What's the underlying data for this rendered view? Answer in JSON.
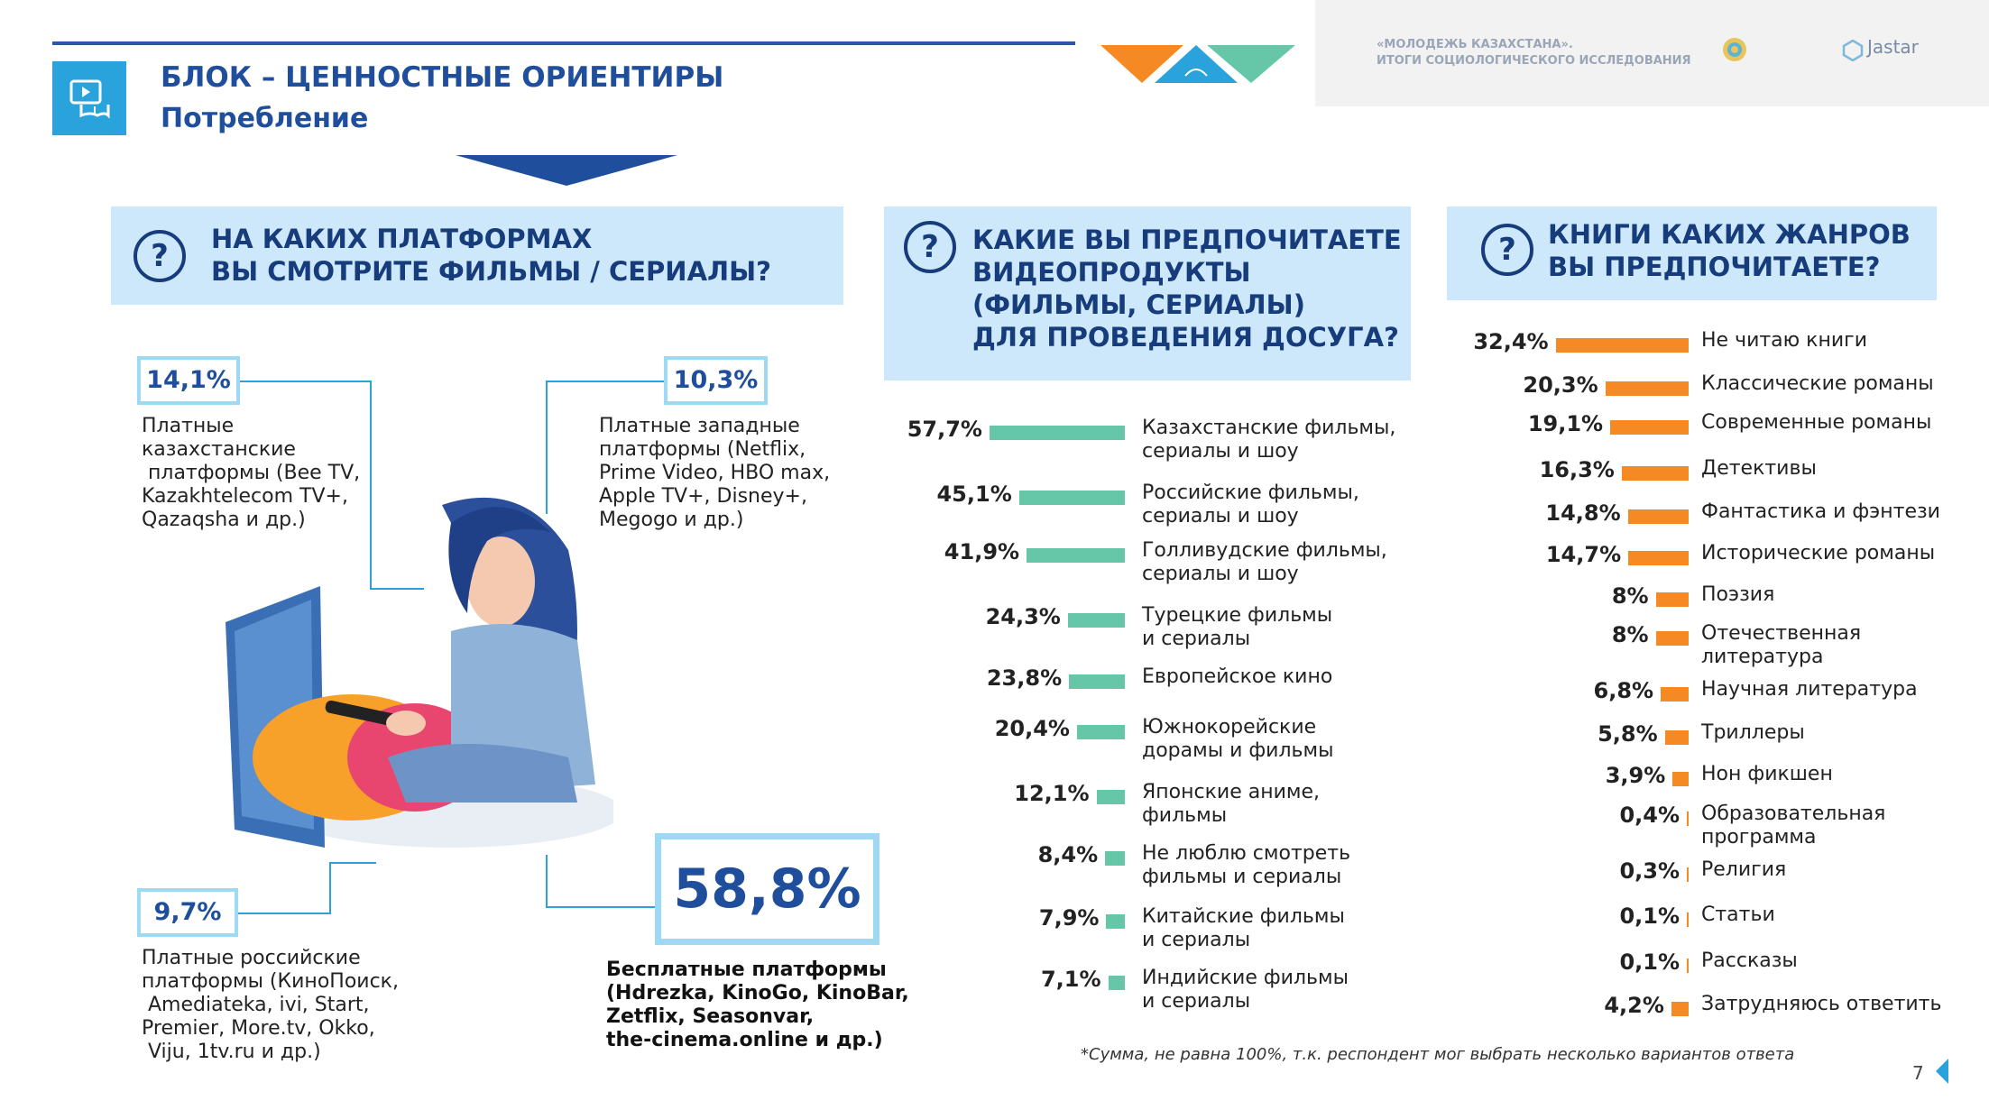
{
  "header": {
    "block_title": "БЛОК – ЦЕННОСТНЫЕ ОРИЕНТИРЫ",
    "block_subtitle": "Потребление",
    "report_line1": "«МОЛОДЕЖЬ КАЗАХСТАНА».",
    "report_line2": "ИТОГИ СОЦИОЛОГИЧЕСКОГО ИССЛЕДОВАНИЯ",
    "brand": "Jastar",
    "icons": [
      "video-book-icon",
      "emblem-icon",
      "jastar-logo-icon"
    ]
  },
  "q1": {
    "icon": "question-icon",
    "line1": "НА КАКИХ ПЛАТФОРМАХ",
    "line2": "ВЫ СМОТРИТЕ ФИЛЬМЫ / СЕРИАЛЫ?",
    "platforms": [
      {
        "pct": "14,1%",
        "desc": "Платные\nказахстанские\n платформы (Bee TV,\nKazakhtelecom TV+,\nQazaqsha и др.)"
      },
      {
        "pct": "10,3%",
        "desc": "Платные западные\nплатформы (Netflix,\nPrime Video, HBO max,\nApple TV+, Disney+,\nMegogo и др.)"
      },
      {
        "pct": "9,7%",
        "desc": "Платные российские\nплатформы (КиноПоиск,\n Amediateka, ivi, Start,\nPremier, More.tv, Okko,\n Viju, 1tv.ru и др.)"
      },
      {
        "pct": "58,8%",
        "desc": "Бесплатные платформы\n(Hdrezka, KinoGo, KinoBar,\nZetflix, Seasonvar,\nthe-cinema.online и др.)"
      }
    ]
  },
  "q2": {
    "icon": "question-icon",
    "lines": [
      "КАКИЕ ВЫ ПРЕДПОЧИТАЕТЕ",
      "ВИДЕОПРОДУКТЫ",
      "(ФИЛЬМЫ, СЕРИАЛЫ)",
      "ДЛЯ ПРОВЕДЕНИЯ ДОСУГА?"
    ]
  },
  "q3": {
    "icon": "question-icon",
    "lines": [
      "КНИГИ КАКИХ ЖАНРОВ",
      "ВЫ ПРЕДПОЧИТАЕТЕ?"
    ]
  },
  "colors": {
    "video_bar": "#66c7a8",
    "book_bar": "#f58a24",
    "accent_blue": "#1f4f9c",
    "light_blue": "#cde8fa"
  },
  "chart_data": [
    {
      "type": "bar",
      "orientation": "horizontal",
      "categories": [
        "Казахстанские фильмы,\nсериалы и шоу",
        "Российские фильмы,\nсериалы и шоу",
        "Голливудские фильмы,\nсериалы и шоу",
        "Турецкие фильмы\nи сериалы",
        "Европейское кино",
        "Южнокорейские\nдорамы и фильмы",
        "Японские аниме,\nфильмы",
        "Не люблю смотреть\nфильмы и сериалы",
        "Китайские фильмы\nи сериалы",
        "Индийские фильмы\nи сериалы"
      ],
      "values": [
        57.7,
        45.1,
        41.9,
        24.3,
        23.8,
        20.4,
        12.1,
        8.4,
        7.9,
        7.1
      ],
      "labels": [
        "57,7%",
        "45,1%",
        "41,9%",
        "24,3%",
        "23,8%",
        "20,4%",
        "12,1%",
        "8,4%",
        "7,9%",
        "7,1%"
      ]
    },
    {
      "type": "bar",
      "orientation": "horizontal",
      "categories": [
        "Не читаю книги",
        "Классические романы",
        "Современные романы",
        "Детективы",
        "Фантастика и фэнтези",
        "Исторические романы",
        "Поэзия",
        "Отечественная\nлитература",
        "Научная литература",
        "Триллеры",
        "Нон фикшен",
        "Образовательная\nпрограмма",
        "Религия",
        "Статьи",
        "Рассказы",
        "Затрудняюсь ответить"
      ],
      "values": [
        32.4,
        20.3,
        19.1,
        16.3,
        14.8,
        14.7,
        8,
        8,
        6.8,
        5.8,
        3.9,
        0.4,
        0.3,
        0.1,
        0.1,
        4.2
      ],
      "labels": [
        "32,4%",
        "20,3%",
        "19,1%",
        "16,3%",
        "14,8%",
        "14,7%",
        "8%",
        "8%",
        "6,8%",
        "5,8%",
        "3,9%",
        "0,4%",
        "0,3%",
        "0,1%",
        "0,1%",
        "4,2%"
      ]
    }
  ],
  "footnote": "*Сумма, не равна 100%, т.к. респондент мог выбрать несколько вариантов ответа",
  "page_number": "7"
}
